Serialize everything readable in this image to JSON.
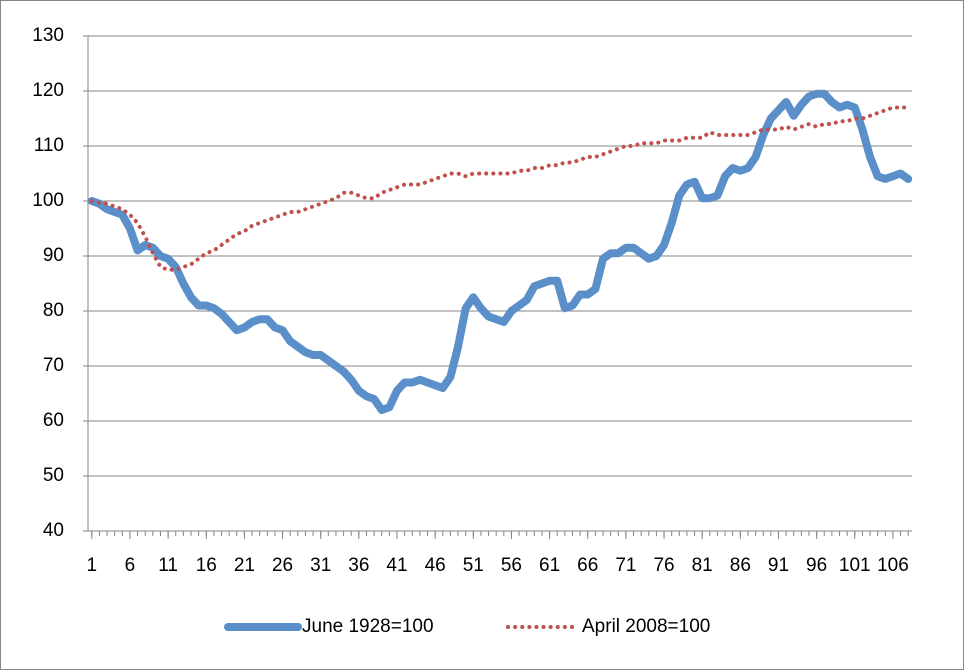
{
  "chart_data": {
    "type": "line",
    "x": [
      1,
      2,
      3,
      4,
      5,
      6,
      7,
      8,
      9,
      10,
      11,
      12,
      13,
      14,
      15,
      16,
      17,
      18,
      19,
      20,
      21,
      22,
      23,
      24,
      25,
      26,
      27,
      28,
      29,
      30,
      31,
      32,
      33,
      34,
      35,
      36,
      37,
      38,
      39,
      40,
      41,
      42,
      43,
      44,
      45,
      46,
      47,
      48,
      49,
      50,
      51,
      52,
      53,
      54,
      55,
      56,
      57,
      58,
      59,
      60,
      61,
      62,
      63,
      64,
      65,
      66,
      67,
      68,
      69,
      70,
      71,
      72,
      73,
      74,
      75,
      76,
      77,
      78,
      79,
      80,
      81,
      82,
      83,
      84,
      85,
      86,
      87,
      88,
      89,
      90,
      91,
      92,
      93,
      94,
      95,
      96,
      97,
      98,
      99,
      100,
      101,
      102,
      103,
      104,
      105,
      106,
      107,
      108
    ],
    "xlim": [
      0.5,
      108.5
    ],
    "xticks": [
      1,
      6,
      11,
      16,
      21,
      26,
      31,
      36,
      41,
      46,
      51,
      56,
      61,
      66,
      71,
      76,
      81,
      86,
      91,
      96,
      101,
      106
    ],
    "ylim": [
      40,
      130
    ],
    "yticks": [
      40,
      50,
      60,
      70,
      80,
      90,
      100,
      110,
      120,
      130
    ],
    "grid": true,
    "legend": "bottom",
    "series": [
      {
        "name": "June 1928=100",
        "color": "#5b8fc9",
        "style": "solid",
        "values": [
          100,
          99.5,
          98.5,
          98,
          97.5,
          95,
          91,
          92,
          91.5,
          90,
          89.5,
          88,
          85,
          82.5,
          81,
          81,
          80.5,
          79.5,
          78,
          76.5,
          77,
          78,
          78.5,
          78.5,
          77,
          76.5,
          74.5,
          73.5,
          72.5,
          72,
          72,
          71,
          70,
          69,
          67.5,
          65.5,
          64.5,
          64,
          62,
          62.5,
          65.5,
          67,
          67,
          67.5,
          67,
          66.5,
          66,
          68,
          73.5,
          80.5,
          82.5,
          80.5,
          79,
          78.5,
          78,
          80,
          81,
          82,
          84.5,
          85,
          85.5,
          85.5,
          80.5,
          81,
          83,
          83,
          84,
          89.5,
          90.5,
          90.5,
          91.5,
          91.5,
          90.5,
          89.5,
          90,
          92,
          96,
          101,
          103,
          103.5,
          100.5,
          100.5,
          101,
          104.5,
          106,
          105.5,
          106,
          108,
          112,
          115,
          116.5,
          118,
          115.5,
          117.5,
          119,
          119.5,
          119.5,
          118,
          117,
          117.5,
          117,
          113,
          108,
          104.5,
          104,
          104.5,
          105,
          104
        ]
      },
      {
        "name": "April 2008=100",
        "color": "#c0504d",
        "style": "dotted",
        "values": [
          100,
          99.7,
          99.5,
          99,
          98.5,
          97.5,
          96,
          93.5,
          90.5,
          88,
          87.5,
          87.5,
          88,
          88.5,
          89.5,
          90.5,
          91,
          92,
          93,
          94,
          94.5,
          95.5,
          96,
          96.5,
          97,
          97.5,
          98,
          98,
          98.5,
          99,
          99.5,
          100,
          100.5,
          101.5,
          101.5,
          101,
          100.5,
          100.5,
          101.5,
          102,
          102.5,
          103,
          103,
          103,
          103.5,
          104,
          104.5,
          105,
          105,
          104.5,
          105,
          105,
          105,
          105,
          105,
          105,
          105.5,
          105.5,
          106,
          106,
          106.5,
          106.5,
          107,
          107,
          107.5,
          108,
          108,
          108.5,
          109,
          109.5,
          110,
          110,
          110.5,
          110.5,
          110.5,
          111,
          111,
          111,
          111.5,
          111.5,
          111.5,
          112.5,
          112,
          112,
          112,
          112,
          112,
          112.5,
          113,
          113,
          113,
          113.5,
          113,
          113.5,
          114,
          113.5,
          114,
          114,
          114.5,
          114.5,
          115,
          115,
          115.5,
          116,
          116.5,
          117,
          117,
          117
        ]
      }
    ]
  }
}
